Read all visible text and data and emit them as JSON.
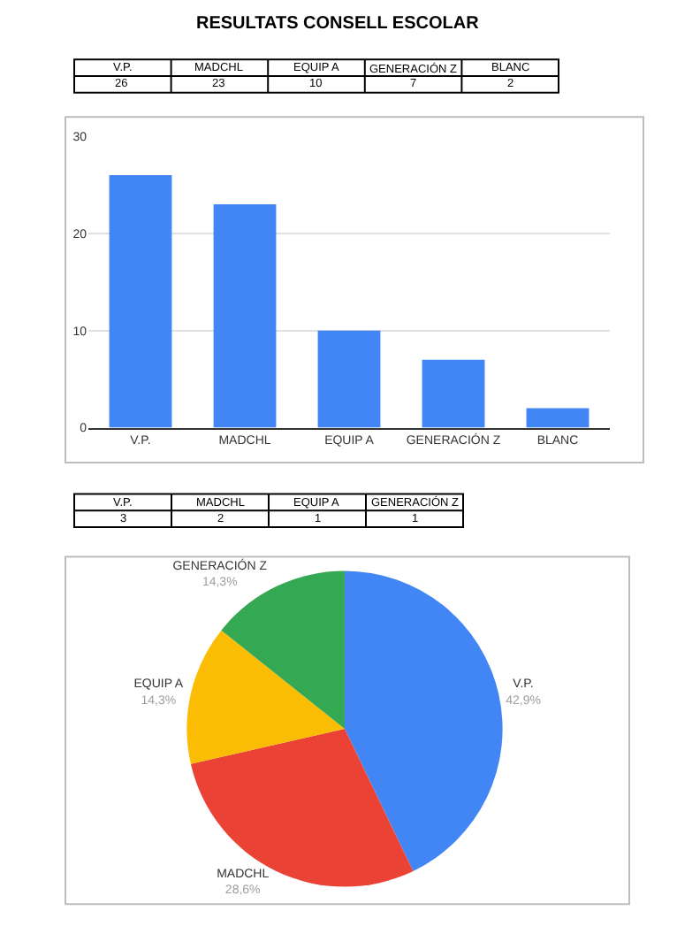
{
  "chart_data": [
    {
      "type": "other",
      "title": "RESULTATS CONSELL ESCOLAR",
      "categories": [
        "V.P.",
        "MADCHL",
        "EQUIP A",
        "GENERACIÓN Z",
        "BLANC"
      ],
      "values": [
        26,
        23,
        10,
        7,
        2
      ],
      "data_labels": true
    },
    {
      "type": "bar",
      "categories": [
        "V.P.",
        "MADCHL",
        "EQUIP A",
        "GENERACIÓN Z",
        "BLANC"
      ],
      "values": [
        26,
        23,
        10,
        7,
        2
      ],
      "color": "#4285f4",
      "ylim": [
        0,
        30
      ],
      "yticks": [
        0,
        10,
        20,
        30
      ],
      "grid": "y"
    },
    {
      "type": "other",
      "categories": [
        "V.P.",
        "MADCHL",
        "EQUIP A",
        "GENERACIÓN Z"
      ],
      "values": [
        3,
        2,
        1,
        1
      ],
      "data_labels": true
    },
    {
      "type": "pie",
      "categories": [
        "V.P.",
        "MADCHL",
        "EQUIP A",
        "GENERACIÓN Z"
      ],
      "values": [
        42.9,
        28.6,
        14.3,
        14.3
      ],
      "colors": [
        "#4285f4",
        "#ea4335",
        "#fbbc04",
        "#34a853"
      ],
      "value_labels": [
        "42,9%",
        "28,6%",
        "14,3%",
        "14,3%"
      ]
    }
  ]
}
